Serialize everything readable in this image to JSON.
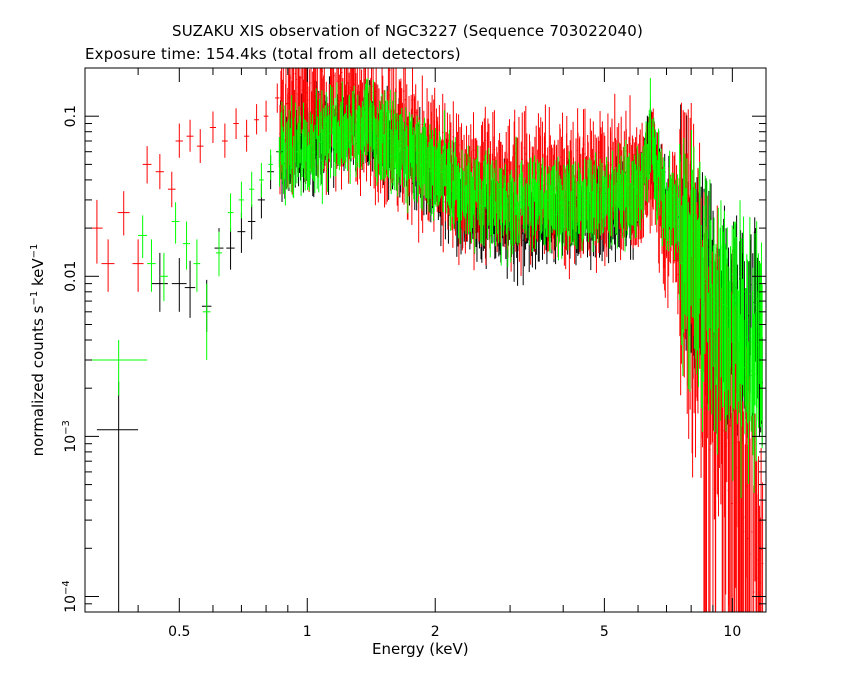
{
  "chart_data": {
    "type": "scatter",
    "title": "SUZAKU XIS observation of NGC3227 (Sequence 703022040)",
    "subtitle": "Exposure time: 154.4ks (total from all detectors)",
    "xlabel": "Energy (keV)",
    "ylabel_parts": {
      "main": "normalized counts s",
      "sup1": "−1",
      "mid": " keV",
      "sup2": "−1"
    },
    "xscale": "log",
    "yscale": "log",
    "xlim": [
      0.3,
      12
    ],
    "ylim": [
      8e-05,
      0.2
    ],
    "x_ticks": [
      {
        "value": 0.5,
        "label": "0.5"
      },
      {
        "value": 1,
        "label": "1"
      },
      {
        "value": 2,
        "label": "2"
      },
      {
        "value": 5,
        "label": "5"
      },
      {
        "value": 10,
        "label": "10"
      }
    ],
    "y_ticks": [
      {
        "value": 0.1,
        "label": "0.1"
      },
      {
        "value": 0.01,
        "label": "0.01"
      },
      {
        "value": 0.001,
        "label": "10",
        "sup": "−3"
      },
      {
        "value": 0.0001,
        "label": "10",
        "sup": "−4"
      }
    ],
    "series": [
      {
        "color": "#000000",
        "points": [
          {
            "x": 0.36,
            "y": 0.0011,
            "xerr": 0.04,
            "yerr_low": 0.0011,
            "yerr_high": 0.0011
          },
          {
            "x": 0.45,
            "y": 0.009,
            "xerr": 0.02,
            "yerr_low": 0.003,
            "yerr_high": 0.005
          },
          {
            "x": 0.5,
            "y": 0.009,
            "xerr": 0.02,
            "yerr_low": 0.003,
            "yerr_high": 0.004
          },
          {
            "x": 0.53,
            "y": 0.0085,
            "xerr": 0.015,
            "yerr_low": 0.003,
            "yerr_high": 0.004
          },
          {
            "x": 0.58,
            "y": 0.0065,
            "xerr": 0.015,
            "yerr_low": 0.002,
            "yerr_high": 0.003
          },
          {
            "x": 0.62,
            "y": 0.015,
            "xerr": 0.015,
            "yerr_low": 0.004,
            "yerr_high": 0.005
          },
          {
            "x": 0.66,
            "y": 0.015,
            "xerr": 0.015,
            "yerr_low": 0.004,
            "yerr_high": 0.005
          },
          {
            "x": 0.7,
            "y": 0.019,
            "xerr": 0.015,
            "yerr_low": 0.005,
            "yerr_high": 0.006
          },
          {
            "x": 0.74,
            "y": 0.022,
            "xerr": 0.015,
            "yerr_low": 0.005,
            "yerr_high": 0.006
          },
          {
            "x": 0.78,
            "y": 0.03,
            "xerr": 0.015,
            "yerr_low": 0.007,
            "yerr_high": 0.008
          },
          {
            "x": 0.82,
            "y": 0.045,
            "xerr": 0.015,
            "yerr_low": 0.01,
            "yerr_high": 0.012
          },
          {
            "x": 0.86,
            "y": 0.06,
            "xerr": 0.015,
            "yerr_low": 0.012,
            "yerr_high": 0.014
          }
        ]
      },
      {
        "color": "#ff0000",
        "points": [
          {
            "x": 0.32,
            "y": 0.02,
            "xerr": 0.01,
            "yerr_low": 0.008,
            "yerr_high": 0.01
          },
          {
            "x": 0.34,
            "y": 0.012,
            "xerr": 0.012,
            "yerr_low": 0.004,
            "yerr_high": 0.005
          },
          {
            "x": 0.37,
            "y": 0.025,
            "xerr": 0.012,
            "yerr_low": 0.007,
            "yerr_high": 0.009
          },
          {
            "x": 0.4,
            "y": 0.012,
            "xerr": 0.012,
            "yerr_low": 0.004,
            "yerr_high": 0.005
          },
          {
            "x": 0.42,
            "y": 0.05,
            "xerr": 0.01,
            "yerr_low": 0.012,
            "yerr_high": 0.015
          },
          {
            "x": 0.45,
            "y": 0.045,
            "xerr": 0.01,
            "yerr_low": 0.01,
            "yerr_high": 0.013
          },
          {
            "x": 0.48,
            "y": 0.035,
            "xerr": 0.01,
            "yerr_low": 0.008,
            "yerr_high": 0.01
          },
          {
            "x": 0.5,
            "y": 0.07,
            "xerr": 0.01,
            "yerr_low": 0.015,
            "yerr_high": 0.02
          },
          {
            "x": 0.53,
            "y": 0.075,
            "xerr": 0.01,
            "yerr_low": 0.015,
            "yerr_high": 0.02
          },
          {
            "x": 0.56,
            "y": 0.065,
            "xerr": 0.01,
            "yerr_low": 0.014,
            "yerr_high": 0.018
          },
          {
            "x": 0.6,
            "y": 0.085,
            "xerr": 0.01,
            "yerr_low": 0.017,
            "yerr_high": 0.022
          },
          {
            "x": 0.64,
            "y": 0.07,
            "xerr": 0.01,
            "yerr_low": 0.015,
            "yerr_high": 0.02
          },
          {
            "x": 0.68,
            "y": 0.09,
            "xerr": 0.01,
            "yerr_low": 0.018,
            "yerr_high": 0.022
          },
          {
            "x": 0.72,
            "y": 0.075,
            "xerr": 0.01,
            "yerr_low": 0.015,
            "yerr_high": 0.02
          },
          {
            "x": 0.76,
            "y": 0.095,
            "xerr": 0.01,
            "yerr_low": 0.018,
            "yerr_high": 0.024
          },
          {
            "x": 0.8,
            "y": 0.1,
            "xerr": 0.01,
            "yerr_low": 0.02,
            "yerr_high": 0.025
          },
          {
            "x": 0.85,
            "y": 0.13,
            "xerr": 0.01,
            "yerr_low": 0.025,
            "yerr_high": 0.03
          },
          {
            "x": 0.9,
            "y": 0.12,
            "xerr": 0.01,
            "yerr_low": 0.025,
            "yerr_high": 0.03
          }
        ]
      },
      {
        "color": "#00ff00",
        "points": [
          {
            "x": 0.36,
            "y": 0.003,
            "xerr": 0.06,
            "yerr_low": 0.0012,
            "yerr_high": 0.001
          },
          {
            "x": 0.41,
            "y": 0.018,
            "xerr": 0.01,
            "yerr_low": 0.005,
            "yerr_high": 0.006
          },
          {
            "x": 0.43,
            "y": 0.012,
            "xerr": 0.01,
            "yerr_low": 0.004,
            "yerr_high": 0.005
          },
          {
            "x": 0.46,
            "y": 0.01,
            "xerr": 0.01,
            "yerr_low": 0.003,
            "yerr_high": 0.004
          },
          {
            "x": 0.49,
            "y": 0.022,
            "xerr": 0.01,
            "yerr_low": 0.006,
            "yerr_high": 0.007
          },
          {
            "x": 0.52,
            "y": 0.016,
            "xerr": 0.01,
            "yerr_low": 0.005,
            "yerr_high": 0.006
          },
          {
            "x": 0.55,
            "y": 0.012,
            "xerr": 0.01,
            "yerr_low": 0.004,
            "yerr_high": 0.005
          },
          {
            "x": 0.58,
            "y": 0.006,
            "xerr": 0.012,
            "yerr_low": 0.003,
            "yerr_high": 0.003
          },
          {
            "x": 0.62,
            "y": 0.014,
            "xerr": 0.01,
            "yerr_low": 0.004,
            "yerr_high": 0.005
          },
          {
            "x": 0.66,
            "y": 0.025,
            "xerr": 0.01,
            "yerr_low": 0.006,
            "yerr_high": 0.008
          },
          {
            "x": 0.7,
            "y": 0.03,
            "xerr": 0.01,
            "yerr_low": 0.007,
            "yerr_high": 0.009
          },
          {
            "x": 0.74,
            "y": 0.035,
            "xerr": 0.01,
            "yerr_low": 0.008,
            "yerr_high": 0.01
          },
          {
            "x": 0.78,
            "y": 0.04,
            "xerr": 0.01,
            "yerr_low": 0.009,
            "yerr_high": 0.011
          },
          {
            "x": 0.82,
            "y": 0.05,
            "xerr": 0.01,
            "yerr_low": 0.01,
            "yerr_high": 0.012
          },
          {
            "x": 0.86,
            "y": 0.06,
            "xerr": 0.01,
            "yerr_low": 0.012,
            "yerr_high": 0.014
          }
        ]
      }
    ],
    "dense_continuum": {
      "x_range": [
        0.86,
        11.8
      ],
      "anchor_x": [
        0.86,
        1.0,
        1.2,
        1.4,
        1.6,
        2.0,
        2.3,
        2.6,
        3.0,
        3.5,
        4.0,
        4.5,
        5.0,
        5.5,
        6.0,
        6.2,
        6.4,
        6.5,
        6.7,
        7.0,
        7.5,
        8.0,
        8.5,
        9.0,
        10.0,
        11.0,
        11.8
      ],
      "series": [
        {
          "color": "#000000",
          "y": [
            0.065,
            0.075,
            0.09,
            0.09,
            0.07,
            0.045,
            0.03,
            0.025,
            0.024,
            0.025,
            0.026,
            0.027,
            0.028,
            0.03,
            0.033,
            0.04,
            0.075,
            0.06,
            0.04,
            0.032,
            0.022,
            0.015,
            0.01,
            0.0075,
            0.006,
            0.005,
            0.004
          ],
          "scatter": 0.12
        },
        {
          "color": "#ff0000",
          "y": [
            0.12,
            0.125,
            0.12,
            0.11,
            0.09,
            0.06,
            0.045,
            0.04,
            0.04,
            0.04,
            0.042,
            0.043,
            0.044,
            0.045,
            0.045,
            0.045,
            0.06,
            0.05,
            0.035,
            0.025,
            0.018,
            0.012,
            0.006,
            0.003,
            0.001,
            0.0003,
            0.0001
          ],
          "scatter": 0.18
        },
        {
          "color": "#00ff00",
          "y": [
            0.06,
            0.07,
            0.085,
            0.09,
            0.075,
            0.05,
            0.035,
            0.03,
            0.029,
            0.03,
            0.031,
            0.032,
            0.033,
            0.035,
            0.037,
            0.045,
            0.09,
            0.07,
            0.045,
            0.032,
            0.022,
            0.016,
            0.011,
            0.008,
            0.006,
            0.004,
            0.0035
          ],
          "scatter": 0.12
        }
      ]
    }
  }
}
